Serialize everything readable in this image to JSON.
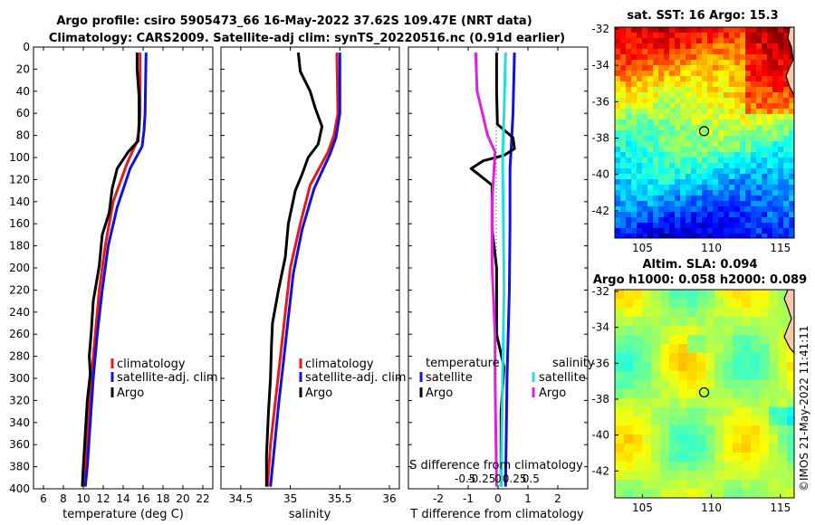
{
  "title_line1": "Argo profile: csiro 5905473_66 16-May-2022 37.62S 109.47E (NRT data)",
  "title_line2": "Climatology: CARS2009. Satellite-adj clim: synTS_20220516.nc (0.91d earlier)",
  "copyright": "©IMOS 21-May-2022 11:41:11",
  "colors": {
    "climatology": "#e41a1c",
    "satellite": "#1010e0",
    "argo": "#000000",
    "sat_sal": "#22dddd",
    "argo_sal": "#e020e0"
  },
  "chart_data": [
    {
      "type": "line",
      "name": "temperature-profile",
      "xlabel": "temperature (deg C)",
      "ylabel": "",
      "xlim": [
        5,
        23
      ],
      "ylim": [
        400,
        0
      ],
      "xticks": [
        6,
        8,
        10,
        12,
        14,
        16,
        18,
        20,
        22
      ],
      "xticklabels": [
        "6",
        "8",
        "10",
        "12",
        "14",
        "16",
        "18",
        "20",
        "22"
      ],
      "yticks": [
        0,
        20,
        40,
        60,
        80,
        100,
        120,
        140,
        160,
        180,
        200,
        220,
        240,
        260,
        280,
        300,
        320,
        340,
        360,
        380,
        400
      ],
      "yticklabels": [
        "0",
        "20",
        "40",
        "60",
        "80",
        "100",
        "120",
        "140",
        "160",
        "180",
        "200",
        "220",
        "240",
        "260",
        "280",
        "300",
        "320",
        "340",
        "360",
        "380",
        "400"
      ],
      "legend": [
        "climatology",
        "satellite-adj. clim",
        "Argo"
      ],
      "series": [
        {
          "name": "climatology",
          "color": "#e41a1c",
          "points": [
            [
              15.7,
              5
            ],
            [
              15.7,
              60
            ],
            [
              15.6,
              75
            ],
            [
              15.4,
              85
            ],
            [
              14.4,
              105
            ],
            [
              13.0,
              140
            ],
            [
              12.2,
              180
            ],
            [
              11.6,
              220
            ],
            [
              11.2,
              260
            ],
            [
              10.8,
              300
            ],
            [
              10.5,
              340
            ],
            [
              10.2,
              380
            ],
            [
              10.0,
              398
            ]
          ]
        },
        {
          "name": "satellite-adj. clim",
          "color": "#1010e0",
          "points": [
            [
              16.3,
              5
            ],
            [
              16.2,
              60
            ],
            [
              16.1,
              75
            ],
            [
              15.9,
              90
            ],
            [
              14.7,
              110
            ],
            [
              13.4,
              145
            ],
            [
              12.5,
              180
            ],
            [
              11.9,
              220
            ],
            [
              11.4,
              260
            ],
            [
              11.0,
              300
            ],
            [
              10.7,
              340
            ],
            [
              10.4,
              380
            ],
            [
              10.2,
              398
            ]
          ]
        },
        {
          "name": "Argo",
          "color": "#000000",
          "points": [
            [
              15.4,
              5
            ],
            [
              15.4,
              20
            ],
            [
              15.6,
              45
            ],
            [
              15.6,
              68
            ],
            [
              15.5,
              85
            ],
            [
              14.5,
              95
            ],
            [
              13.4,
              110
            ],
            [
              12.9,
              128
            ],
            [
              12.6,
              150
            ],
            [
              11.9,
              170
            ],
            [
              11.6,
              198
            ],
            [
              11.0,
              230
            ],
            [
              10.8,
              258
            ],
            [
              10.6,
              280
            ],
            [
              10.7,
              296
            ],
            [
              10.4,
              320
            ],
            [
              10.2,
              350
            ],
            [
              10.0,
              380
            ],
            [
              9.9,
              398
            ]
          ]
        }
      ]
    },
    {
      "type": "line",
      "name": "salinity-profile",
      "xlabel": "salinity",
      "xlim": [
        34.3,
        36.1
      ],
      "ylim": [
        400,
        0
      ],
      "xticks": [
        34.5,
        35,
        35.5,
        36
      ],
      "xticklabels": [
        "34.5",
        "35",
        "35.5",
        "36"
      ],
      "legend": [
        "climatology",
        "satellite-adj. clim",
        "Argo"
      ],
      "series": [
        {
          "name": "climatology",
          "color": "#e41a1c",
          "points": [
            [
              35.47,
              5
            ],
            [
              35.48,
              60
            ],
            [
              35.44,
              80
            ],
            [
              35.38,
              95
            ],
            [
              35.2,
              125
            ],
            [
              35.1,
              160
            ],
            [
              35.0,
              200
            ],
            [
              34.95,
              240
            ],
            [
              34.9,
              280
            ],
            [
              34.85,
              320
            ],
            [
              34.8,
              360
            ],
            [
              34.77,
              398
            ]
          ]
        },
        {
          "name": "satellite-adj. clim",
          "color": "#1010e0",
          "points": [
            [
              35.5,
              5
            ],
            [
              35.5,
              60
            ],
            [
              35.46,
              82
            ],
            [
              35.4,
              97
            ],
            [
              35.24,
              128
            ],
            [
              35.12,
              165
            ],
            [
              35.03,
              205
            ],
            [
              34.98,
              245
            ],
            [
              34.93,
              285
            ],
            [
              34.88,
              325
            ],
            [
              34.84,
              362
            ],
            [
              34.8,
              398
            ]
          ]
        },
        {
          "name": "Argo",
          "color": "#000000",
          "points": [
            [
              35.08,
              5
            ],
            [
              35.1,
              22
            ],
            [
              35.2,
              40
            ],
            [
              35.25,
              55
            ],
            [
              35.32,
              72
            ],
            [
              35.28,
              88
            ],
            [
              35.18,
              100
            ],
            [
              35.12,
              115
            ],
            [
              35.05,
              130
            ],
            [
              34.98,
              160
            ],
            [
              34.95,
              190
            ],
            [
              34.88,
              220
            ],
            [
              34.82,
              250
            ],
            [
              34.81,
              270
            ],
            [
              34.8,
              300
            ],
            [
              34.78,
              330
            ],
            [
              34.76,
              370
            ],
            [
              34.76,
              398
            ]
          ]
        }
      ]
    },
    {
      "type": "line",
      "name": "difference-profile",
      "xlabel": "T difference from climatology",
      "xlim": [
        -3,
        3
      ],
      "ylim": [
        400,
        0
      ],
      "xticks": [
        -2,
        -1,
        0,
        1,
        2
      ],
      "xticklabels": [
        "-2",
        "-1",
        "0",
        "1",
        "2"
      ],
      "sal_axis_label": "S difference from climatology",
      "sal_ticks": [
        -0.5,
        -0.25,
        0,
        0.25,
        0.5
      ],
      "sal_ticklabels": [
        "-0.5",
        "-0.25",
        "0",
        "0.25",
        "0.5"
      ],
      "legend_titles": [
        "temperature",
        "salinity"
      ],
      "legend_temp": [
        "satellite",
        "Argo"
      ],
      "legend_sal": [
        "satellite",
        "Argo"
      ],
      "series": [
        {
          "name": "T satellite",
          "color": "#1010e0",
          "points": [
            [
              0.55,
              5
            ],
            [
              0.5,
              60
            ],
            [
              0.45,
              85
            ],
            [
              0.4,
              110
            ],
            [
              0.4,
              160
            ],
            [
              0.38,
              220
            ],
            [
              0.3,
              300
            ],
            [
              0.25,
              398
            ]
          ]
        },
        {
          "name": "T Argo",
          "color": "#000000",
          "points": [
            [
              -0.05,
              5
            ],
            [
              -0.05,
              40
            ],
            [
              -0.02,
              70
            ],
            [
              0.5,
              82
            ],
            [
              0.55,
              92
            ],
            [
              0.2,
              98
            ],
            [
              -0.5,
              103
            ],
            [
              -0.9,
              110
            ],
            [
              -0.2,
              125
            ],
            [
              -0.2,
              165
            ],
            [
              -0.05,
              200
            ],
            [
              -0.05,
              260
            ],
            [
              0.2,
              290
            ],
            [
              0.1,
              330
            ],
            [
              0.1,
              398
            ]
          ]
        },
        {
          "name": "S satellite",
          "color": "#22dddd",
          "points": [
            [
              0.25,
              5
            ],
            [
              0.2,
              60
            ],
            [
              0.15,
              100
            ],
            [
              0.18,
              160
            ],
            [
              0.2,
              220
            ],
            [
              0.15,
              300
            ],
            [
              0.1,
              398
            ]
          ]
        },
        {
          "name": "S Argo",
          "color": "#e020e0",
          "points": [
            [
              -0.75,
              5
            ],
            [
              -0.7,
              40
            ],
            [
              -0.35,
              80
            ],
            [
              -0.1,
              95
            ],
            [
              -0.2,
              140
            ],
            [
              -0.2,
              200
            ],
            [
              -0.1,
              260
            ],
            [
              -0.1,
              300
            ],
            [
              -0.05,
              398
            ]
          ]
        }
      ]
    },
    {
      "type": "heatmap",
      "name": "sst-map",
      "title": "sat. SST: 16 Argo: 15.3",
      "xlim": [
        103,
        116
      ],
      "ylim": [
        -43.5,
        -31.9
      ],
      "xticks": [
        105,
        110,
        115
      ],
      "xticklabels": [
        "105",
        "110",
        "115"
      ],
      "yticks": [
        -32,
        -34,
        -36,
        -38,
        -40,
        -42
      ],
      "yticklabels": [
        "-32",
        "-34",
        "-36",
        "-38",
        "-40",
        "-42"
      ],
      "argo_position": [
        109.47,
        -37.62
      ]
    },
    {
      "type": "heatmap",
      "name": "sla-map",
      "title_line1": "Altim. SLA: 0.094",
      "title_line2": "Argo h1000: 0.058 h2000: 0.089",
      "xlim": [
        103,
        116
      ],
      "ylim": [
        -43.5,
        -31.9
      ],
      "xticks": [
        105,
        110,
        115
      ],
      "xticklabels": [
        "105",
        "110",
        "115"
      ],
      "yticks": [
        -32,
        -34,
        -36,
        -38,
        -40,
        -42
      ],
      "yticklabels": [
        "-32",
        "-34",
        "-36",
        "-38",
        "-40",
        "-42"
      ],
      "argo_position": [
        109.47,
        -37.62
      ]
    }
  ]
}
